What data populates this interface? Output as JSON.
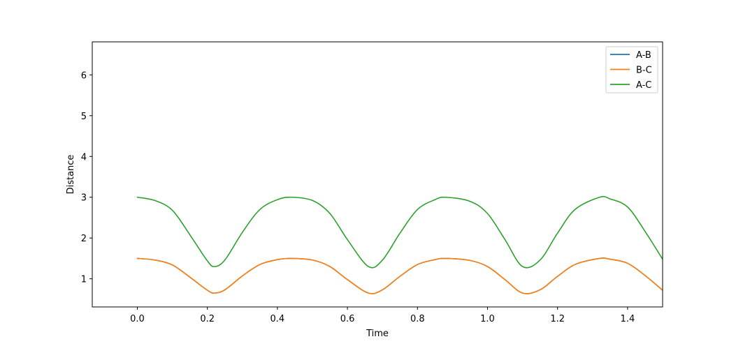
{
  "chart_data": {
    "type": "line",
    "title": "",
    "xlabel": "Time",
    "ylabel": "Distance",
    "xlim": [
      -0.1287,
      1.5
    ],
    "ylim": [
      0.31,
      6.81
    ],
    "xticks": [
      0.0,
      0.2,
      0.4,
      0.6,
      0.8,
      1.0,
      1.2,
      1.4
    ],
    "xtick_labels": [
      "0.0",
      "0.2",
      "0.4",
      "0.6",
      "0.8",
      "1.0",
      "1.2",
      "1.4"
    ],
    "yticks": [
      1,
      2,
      3,
      4,
      5,
      6
    ],
    "ytick_labels": [
      "1",
      "2",
      "3",
      "4",
      "5",
      "6"
    ],
    "grid": false,
    "legend_position": "top-right",
    "series": [
      {
        "name": "A-B",
        "color": "#1f77b4",
        "x": [
          0.0,
          0.05,
          0.1,
          0.15,
          0.2,
          0.22,
          0.25,
          0.3,
          0.35,
          0.4,
          0.44,
          0.5,
          0.55,
          0.6,
          0.66,
          0.7,
          0.75,
          0.8,
          0.85,
          0.88,
          0.95,
          1.0,
          1.05,
          1.1,
          1.15,
          1.2,
          1.25,
          1.32,
          1.35,
          1.4,
          1.45,
          1.5
        ],
        "y": [
          1.5,
          1.46,
          1.34,
          1.04,
          0.72,
          0.65,
          0.73,
          1.07,
          1.35,
          1.47,
          1.5,
          1.46,
          1.3,
          0.98,
          0.65,
          0.73,
          1.06,
          1.35,
          1.47,
          1.5,
          1.45,
          1.3,
          0.98,
          0.65,
          0.73,
          1.06,
          1.35,
          1.5,
          1.48,
          1.38,
          1.08,
          0.72
        ]
      },
      {
        "name": "B-C",
        "color": "#ff7f0e",
        "x": [
          0.0,
          0.05,
          0.1,
          0.15,
          0.2,
          0.22,
          0.25,
          0.3,
          0.35,
          0.4,
          0.44,
          0.5,
          0.55,
          0.6,
          0.66,
          0.7,
          0.75,
          0.8,
          0.85,
          0.88,
          0.95,
          1.0,
          1.05,
          1.1,
          1.15,
          1.2,
          1.25,
          1.32,
          1.35,
          1.4,
          1.45,
          1.5
        ],
        "y": [
          1.5,
          1.46,
          1.34,
          1.04,
          0.72,
          0.65,
          0.73,
          1.07,
          1.35,
          1.47,
          1.5,
          1.46,
          1.3,
          0.98,
          0.65,
          0.73,
          1.06,
          1.35,
          1.47,
          1.5,
          1.45,
          1.3,
          0.98,
          0.65,
          0.73,
          1.06,
          1.35,
          1.5,
          1.48,
          1.38,
          1.08,
          0.72
        ]
      },
      {
        "name": "A-C",
        "color": "#2ca02c",
        "x": [
          0.0,
          0.05,
          0.1,
          0.15,
          0.2,
          0.22,
          0.25,
          0.3,
          0.35,
          0.4,
          0.44,
          0.5,
          0.55,
          0.6,
          0.66,
          0.7,
          0.75,
          0.8,
          0.85,
          0.88,
          0.95,
          1.0,
          1.05,
          1.1,
          1.15,
          1.2,
          1.25,
          1.32,
          1.35,
          1.4,
          1.45,
          1.5
        ],
        "y": [
          3.0,
          2.92,
          2.68,
          2.08,
          1.44,
          1.3,
          1.46,
          2.14,
          2.7,
          2.94,
          3.0,
          2.92,
          2.6,
          1.96,
          1.3,
          1.46,
          2.12,
          2.7,
          2.94,
          3.0,
          2.9,
          2.6,
          1.96,
          1.3,
          1.46,
          2.12,
          2.7,
          3.0,
          2.96,
          2.76,
          2.16,
          1.48
        ]
      }
    ]
  }
}
